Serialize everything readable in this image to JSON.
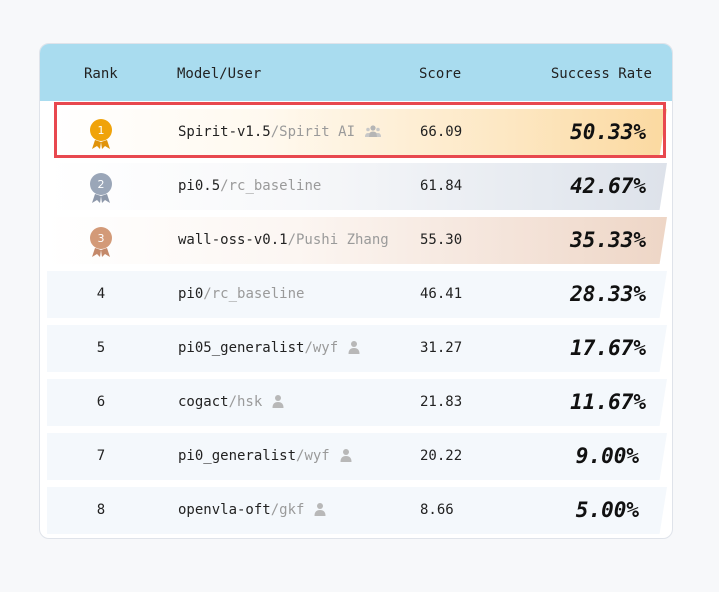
{
  "header": {
    "rank": "Rank",
    "model": "Model/User",
    "score": "Score",
    "success_rate": "Success Rate"
  },
  "rows": [
    {
      "rank": "1",
      "model": "Spirit-v1.5",
      "user": "/Spirit AI",
      "score": "66.09",
      "rate": "50.33%",
      "icon": "group-icon",
      "medal": "gold"
    },
    {
      "rank": "2",
      "model": "pi0.5",
      "user": "/rc_baseline",
      "score": "61.84",
      "rate": "42.67%",
      "icon": "",
      "medal": "silver"
    },
    {
      "rank": "3",
      "model": "wall-oss-v0.1",
      "user": "/Pushi Zhang",
      "score": "55.30",
      "rate": "35.33%",
      "icon": "",
      "medal": "bronze"
    },
    {
      "rank": "4",
      "model": "pi0",
      "user": "/rc_baseline",
      "score": "46.41",
      "rate": "28.33%",
      "icon": ""
    },
    {
      "rank": "5",
      "model": "pi05_generalist",
      "user": "/wyf",
      "score": "31.27",
      "rate": "17.67%",
      "icon": "person-icon"
    },
    {
      "rank": "6",
      "model": "cogact",
      "user": "/hsk",
      "score": "21.83",
      "rate": "11.67%",
      "icon": "person-icon"
    },
    {
      "rank": "7",
      "model": "pi0_generalist",
      "user": "/wyf",
      "score": "20.22",
      "rate": "9.00%",
      "icon": "person-icon"
    },
    {
      "rank": "8",
      "model": "openvla-oft",
      "user": "/gkf",
      "score": "8.66",
      "rate": "5.00%",
      "icon": "person-icon"
    }
  ],
  "colors": {
    "header_bg": "#a9dcef",
    "gold": "#f0a30a",
    "silver": "#9aa6b8",
    "bronze": "#d39a78",
    "highlight_border": "#e8484f"
  }
}
